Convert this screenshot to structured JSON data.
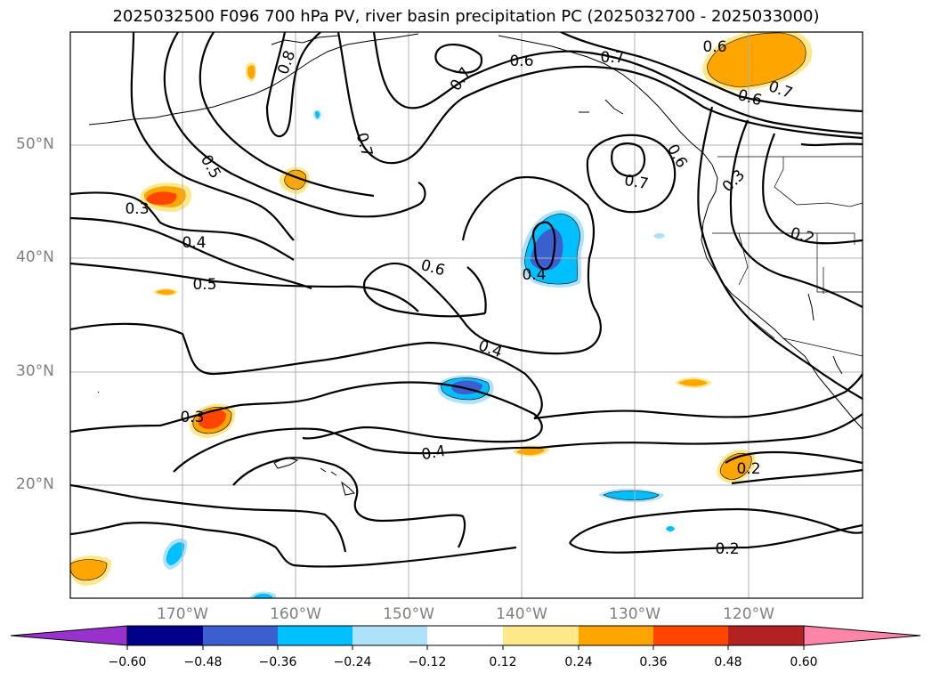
{
  "title": "2025032500 F096 700 hPa PV, river basin precipitation PC (2025032700 - 2025033000)",
  "lat_labels": [
    "50°N",
    "40°N",
    "30°N",
    "20°N"
  ],
  "lon_labels": [
    "170°W",
    "160°W",
    "150°W",
    "140°W",
    "130°W",
    "120°W"
  ],
  "contour_labels": [
    "0.6",
    "0.7",
    "0.7",
    "0.6",
    "0.7",
    "0.6",
    "0.8",
    "0.7",
    "0.5",
    "0.3",
    "0.4",
    "0.5",
    "0.6",
    "0.4",
    "0.7",
    "0.6",
    "0.3",
    "0.2",
    "0.4",
    "0.3",
    "0.4",
    "0.2",
    "0.2"
  ],
  "colorbar": {
    "ticks": [
      "−0.60",
      "−0.48",
      "−0.36",
      "−0.24",
      "−0.12",
      "0.12",
      "0.24",
      "0.36",
      "0.48",
      "0.60"
    ],
    "colors": [
      "#9932cc",
      "#00008b",
      "#3b5fce",
      "#00bfff",
      "#aee2fa",
      "#ffffff",
      "#ffe88a",
      "#ffa500",
      "#ff4500",
      "#b22222",
      "#ff85a8"
    ]
  }
}
